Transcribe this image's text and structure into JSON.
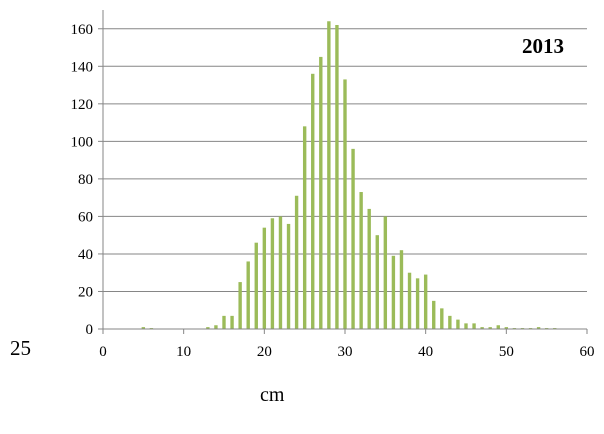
{
  "page_number": "25",
  "chart_data": {
    "type": "bar",
    "title": "2013",
    "xlabel": "cm",
    "ylabel": "",
    "xlim": [
      0,
      60
    ],
    "ylim": [
      0,
      170
    ],
    "xticks": [
      0,
      10,
      20,
      30,
      40,
      50,
      60
    ],
    "yticks": [
      0,
      20,
      40,
      60,
      80,
      100,
      120,
      140,
      160
    ],
    "grid": "horizontal",
    "bar_color": "#9BBB59",
    "x": [
      5,
      6,
      13,
      14,
      15,
      16,
      17,
      18,
      19,
      20,
      21,
      22,
      23,
      24,
      25,
      26,
      27,
      28,
      29,
      30,
      31,
      32,
      33,
      34,
      35,
      36,
      37,
      38,
      39,
      40,
      41,
      42,
      43,
      44,
      45,
      46,
      47,
      48,
      49,
      50,
      51,
      52,
      53,
      54,
      55,
      56
    ],
    "values": [
      1,
      0.5,
      1,
      2,
      7,
      7,
      25,
      36,
      46,
      54,
      59,
      60,
      56,
      71,
      108,
      136,
      145,
      164,
      162,
      133,
      96,
      73,
      64,
      50,
      60,
      39,
      42,
      30,
      27,
      29,
      15,
      11,
      7,
      5,
      3,
      3,
      1,
      1,
      2,
      1,
      0.5,
      0.5,
      0.5,
      1,
      0.5,
      0.5
    ]
  }
}
